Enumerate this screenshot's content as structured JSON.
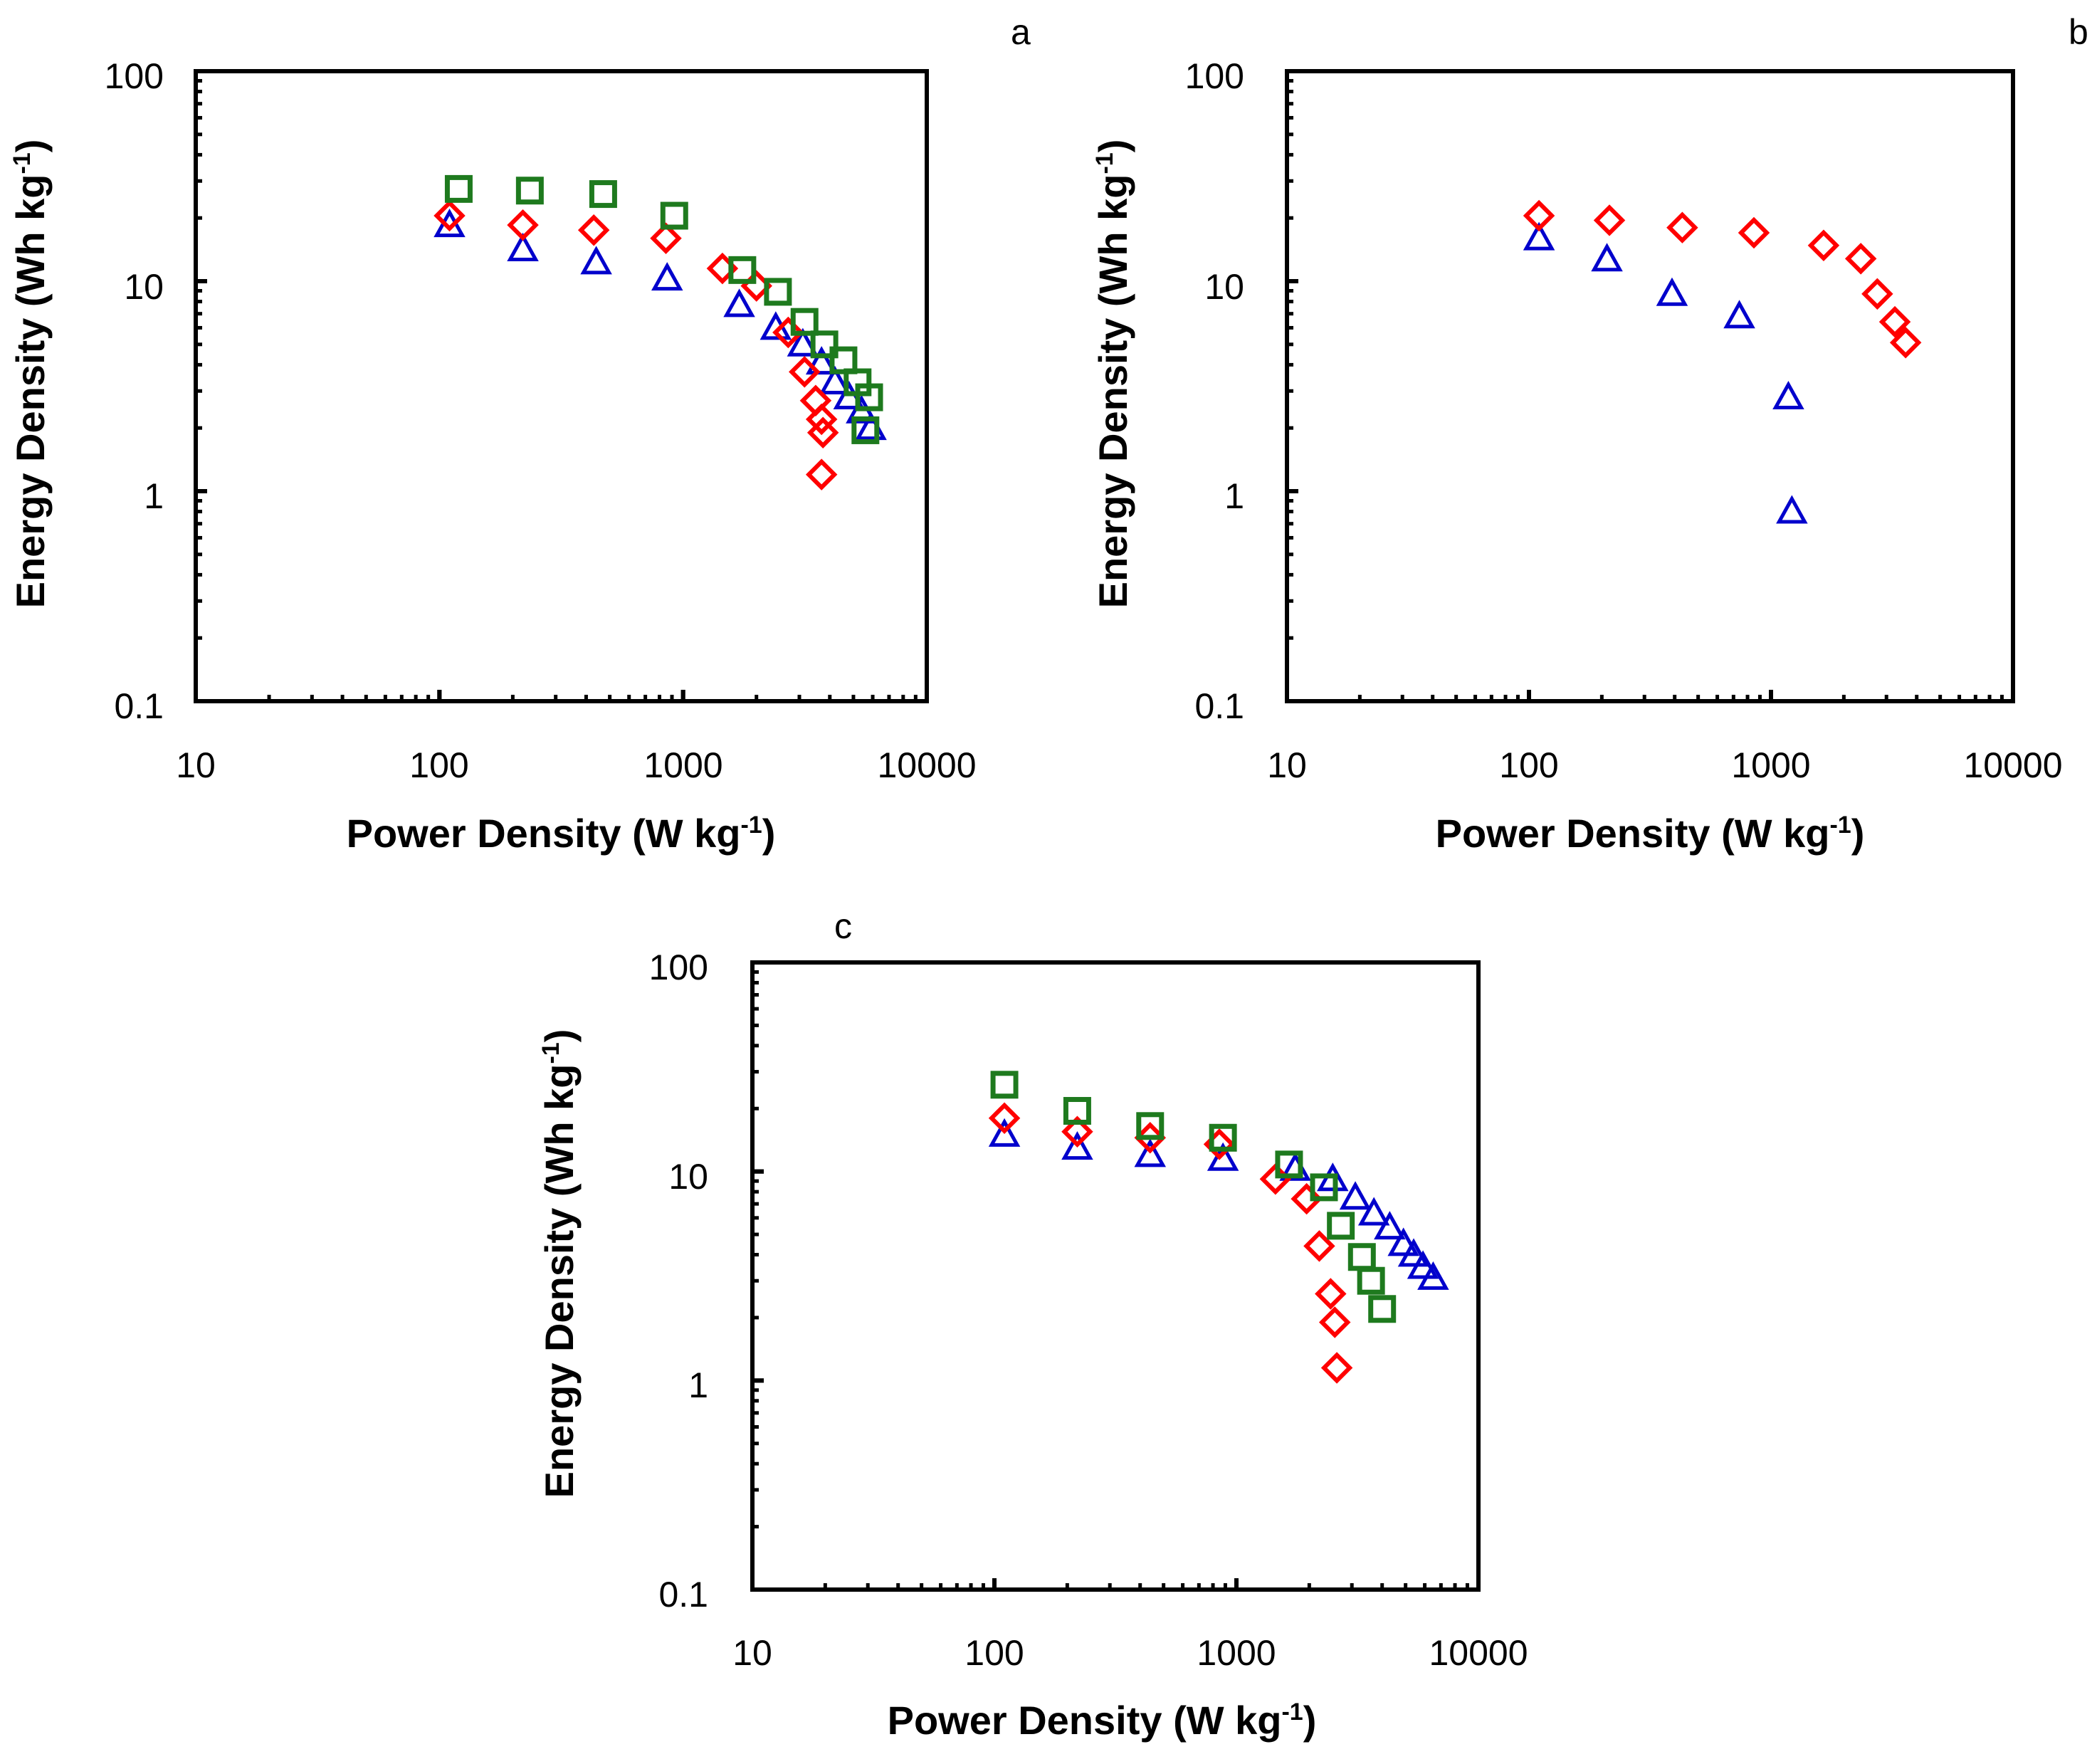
{
  "chart_data": [
    {
      "panel": "a",
      "type": "scatter",
      "xscale": "log",
      "yscale": "log",
      "xlim": [
        10,
        10000
      ],
      "ylim": [
        0.1,
        100
      ],
      "x_ticks": [
        "10",
        "100",
        "1000",
        "10000"
      ],
      "y_ticks": [
        "0.1",
        "1",
        "10",
        "100"
      ],
      "xlabel": "Power Density (W kg",
      "xlabel_sup": "-1",
      "xlabel_end": ")",
      "ylabel": "Energy Density (Wh kg",
      "ylabel_sup": "-1",
      "ylabel_end": ")",
      "series": [
        {
          "marker": "triangle",
          "color": "#0000CC",
          "x": [
            110,
            220,
            440,
            860,
            1700,
            2400,
            3100,
            3700,
            4200,
            4800,
            5400,
            5900
          ],
          "y": [
            18.5,
            14.2,
            12.3,
            10.3,
            7.7,
            6.0,
            5.0,
            4.1,
            3.3,
            2.8,
            2.4,
            2.0
          ]
        },
        {
          "marker": "diamond",
          "color": "#FF0000",
          "x": [
            110,
            220,
            430,
            850,
            1450,
            2000,
            2700,
            3150,
            3500,
            3700,
            3750,
            3700
          ],
          "y": [
            20.5,
            18.5,
            17.5,
            16.0,
            11.5,
            9.5,
            5.7,
            3.7,
            2.7,
            2.2,
            1.9,
            1.2
          ]
        },
        {
          "marker": "square",
          "color": "#1E7A1E",
          "x": [
            120,
            235,
            470,
            920,
            1750,
            2450,
            3150,
            3800,
            4550,
            5200,
            5800,
            5600
          ],
          "y": [
            27.5,
            27.0,
            26.0,
            20.5,
            11.3,
            8.9,
            6.4,
            5.0,
            4.2,
            3.3,
            2.8,
            1.95
          ]
        }
      ]
    },
    {
      "panel": "b",
      "type": "scatter",
      "xscale": "log",
      "yscale": "log",
      "xlim": [
        10,
        10000
      ],
      "ylim": [
        0.1,
        100
      ],
      "x_ticks": [
        "10",
        "100",
        "1000",
        "10000"
      ],
      "y_ticks": [
        "0.1",
        "1",
        "10",
        "100"
      ],
      "xlabel": "Power Density (W kg",
      "xlabel_sup": "-1",
      "xlabel_end": ")",
      "ylabel": "Energy Density (Wh kg",
      "ylabel_sup": "-1",
      "ylabel_end": ")",
      "series": [
        {
          "marker": "triangle",
          "color": "#0000CC",
          "x": [
            110,
            210,
            390,
            740,
            1180,
            1220
          ],
          "y": [
            16.0,
            12.7,
            8.7,
            6.8,
            2.8,
            0.8
          ]
        },
        {
          "marker": "diamond",
          "color": "#FF0000",
          "x": [
            110,
            215,
            430,
            850,
            1650,
            2350,
            2750,
            3250,
            3600
          ],
          "y": [
            20.5,
            19.5,
            18.0,
            17.0,
            14.8,
            12.8,
            8.7,
            6.4,
            5.1
          ]
        }
      ]
    },
    {
      "panel": "c",
      "type": "scatter",
      "xscale": "log",
      "yscale": "log",
      "xlim": [
        10,
        10000
      ],
      "ylim": [
        0.1,
        100
      ],
      "x_ticks": [
        "10",
        "100",
        "1000",
        "10000"
      ],
      "y_ticks": [
        "0.1",
        "1",
        "10",
        "100"
      ],
      "xlabel": "Power Density (W kg",
      "xlabel_sup": "-1",
      "xlabel_end": ")",
      "ylabel": "Energy Density (Wh kg",
      "ylabel_sup": "-1",
      "ylabel_end": ")",
      "series": [
        {
          "marker": "triangle",
          "color": "#0000CC",
          "x": [
            110,
            220,
            440,
            880,
            1750,
            2500,
            3100,
            3700,
            4300,
            4900,
            5400,
            5900,
            6500
          ],
          "y": [
            15.0,
            13.0,
            12.0,
            11.5,
            10.3,
            9.2,
            7.5,
            6.3,
            5.4,
            4.5,
            4.0,
            3.5,
            3.1
          ]
        },
        {
          "marker": "diamond",
          "color": "#FF0000",
          "x": [
            110,
            220,
            440,
            850,
            1450,
            1950,
            2200,
            2450,
            2550,
            2600
          ],
          "y": [
            18.0,
            15.5,
            14.5,
            13.5,
            9.2,
            7.4,
            4.4,
            2.6,
            1.9,
            1.15
          ]
        },
        {
          "marker": "square",
          "color": "#1E7A1E",
          "x": [
            110,
            220,
            440,
            880,
            1650,
            2300,
            2700,
            3300,
            3600,
            4000
          ],
          "y": [
            26.0,
            19.5,
            16.5,
            14.5,
            10.8,
            8.4,
            5.5,
            3.9,
            3.0,
            2.2
          ]
        }
      ]
    }
  ]
}
